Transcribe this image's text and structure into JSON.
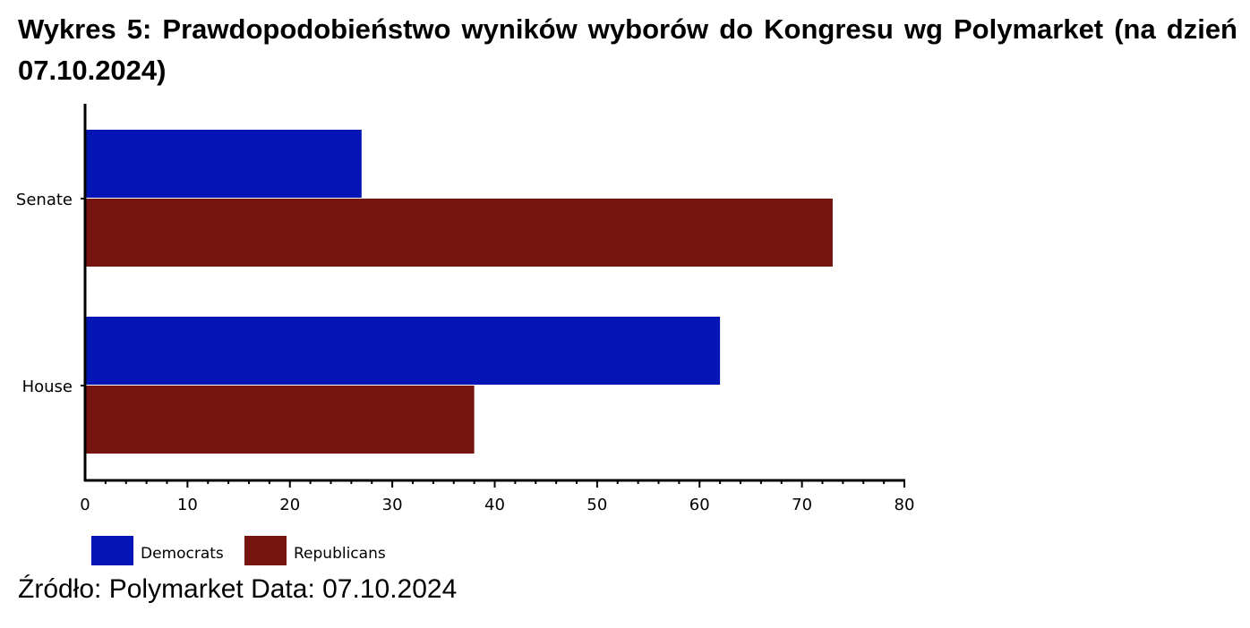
{
  "title": "Wykres 5: Prawdopodobieństwo wyników wyborów do Kongresu wg Polymarket (na dzień 07.10.2024)",
  "source": "Źródło: Polymarket Data: 07.10.2024",
  "chart_data": {
    "type": "bar",
    "orientation": "horizontal",
    "categories": [
      "Senate",
      "House"
    ],
    "series": [
      {
        "name": "Democrats",
        "color": "#0414b5",
        "values": [
          27,
          62
        ]
      },
      {
        "name": "Republicans",
        "color": "#761410",
        "values": [
          73,
          38
        ]
      }
    ],
    "xlim": [
      0,
      80
    ],
    "xticks": [
      0,
      10,
      20,
      30,
      40,
      50,
      60,
      70,
      80
    ],
    "grid": false,
    "legend": "bottom-left"
  }
}
